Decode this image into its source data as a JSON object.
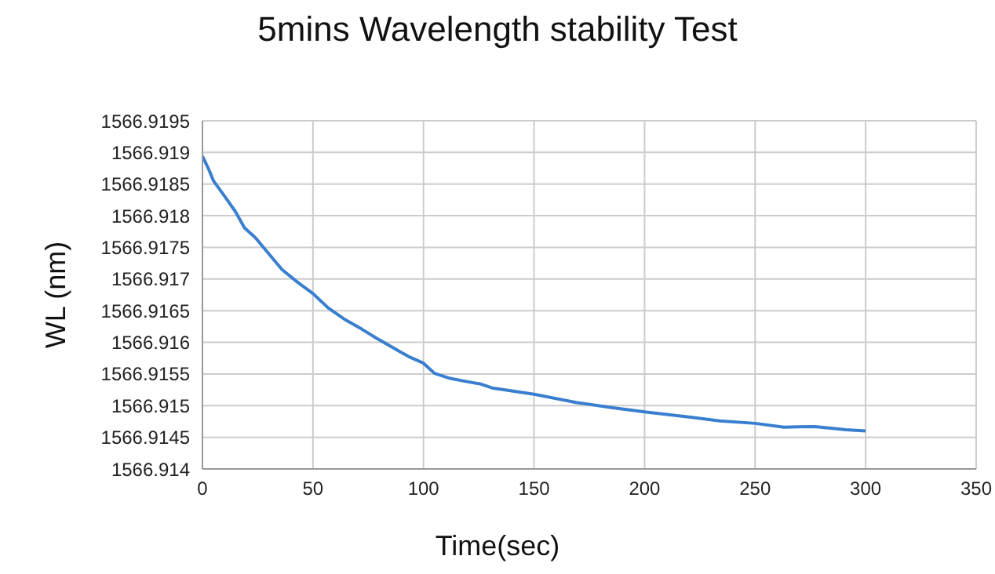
{
  "chart_data": {
    "type": "line",
    "title": "5mins Wavelength stability Test",
    "xlabel": "Time(sec)",
    "ylabel": "WL (nm)",
    "x": [
      0,
      3,
      5,
      10,
      15,
      19,
      24,
      29,
      36,
      43,
      50,
      57,
      64,
      72,
      79,
      86,
      93,
      100,
      105,
      112,
      121,
      126,
      131,
      150,
      169,
      185,
      200,
      220,
      234,
      250,
      263,
      277,
      291,
      300
    ],
    "series": [
      {
        "color": "#3a7fcf",
        "values": [
          1566.91894,
          1566.91872,
          1566.91855,
          1566.91831,
          1566.91806,
          1566.91781,
          1566.91765,
          1566.91744,
          1566.91715,
          1566.91695,
          1566.91677,
          1566.91654,
          1566.91637,
          1566.91621,
          1566.91606,
          1566.91592,
          1566.91578,
          1566.91567,
          1566.91551,
          1566.91543,
          1566.91537,
          1566.91534,
          1566.91528,
          1566.91518,
          1566.91505,
          1566.91497,
          1566.9149,
          1566.91482,
          1566.91476,
          1566.91472,
          1566.91466,
          1566.91467,
          1566.91462,
          1566.9146
        ]
      }
    ],
    "xlim": [
      0,
      350
    ],
    "xticks": [
      0,
      50,
      100,
      150,
      200,
      250,
      300,
      350
    ],
    "ylim": [
      1566.914,
      1566.9195
    ],
    "yticks": [
      1566.914,
      1566.9145,
      1566.915,
      1566.9155,
      1566.916,
      1566.9165,
      1566.917,
      1566.9175,
      1566.918,
      1566.9185,
      1566.919,
      1566.9195
    ],
    "grid": true,
    "legend": false,
    "marker": "none",
    "line_style": "solid"
  }
}
